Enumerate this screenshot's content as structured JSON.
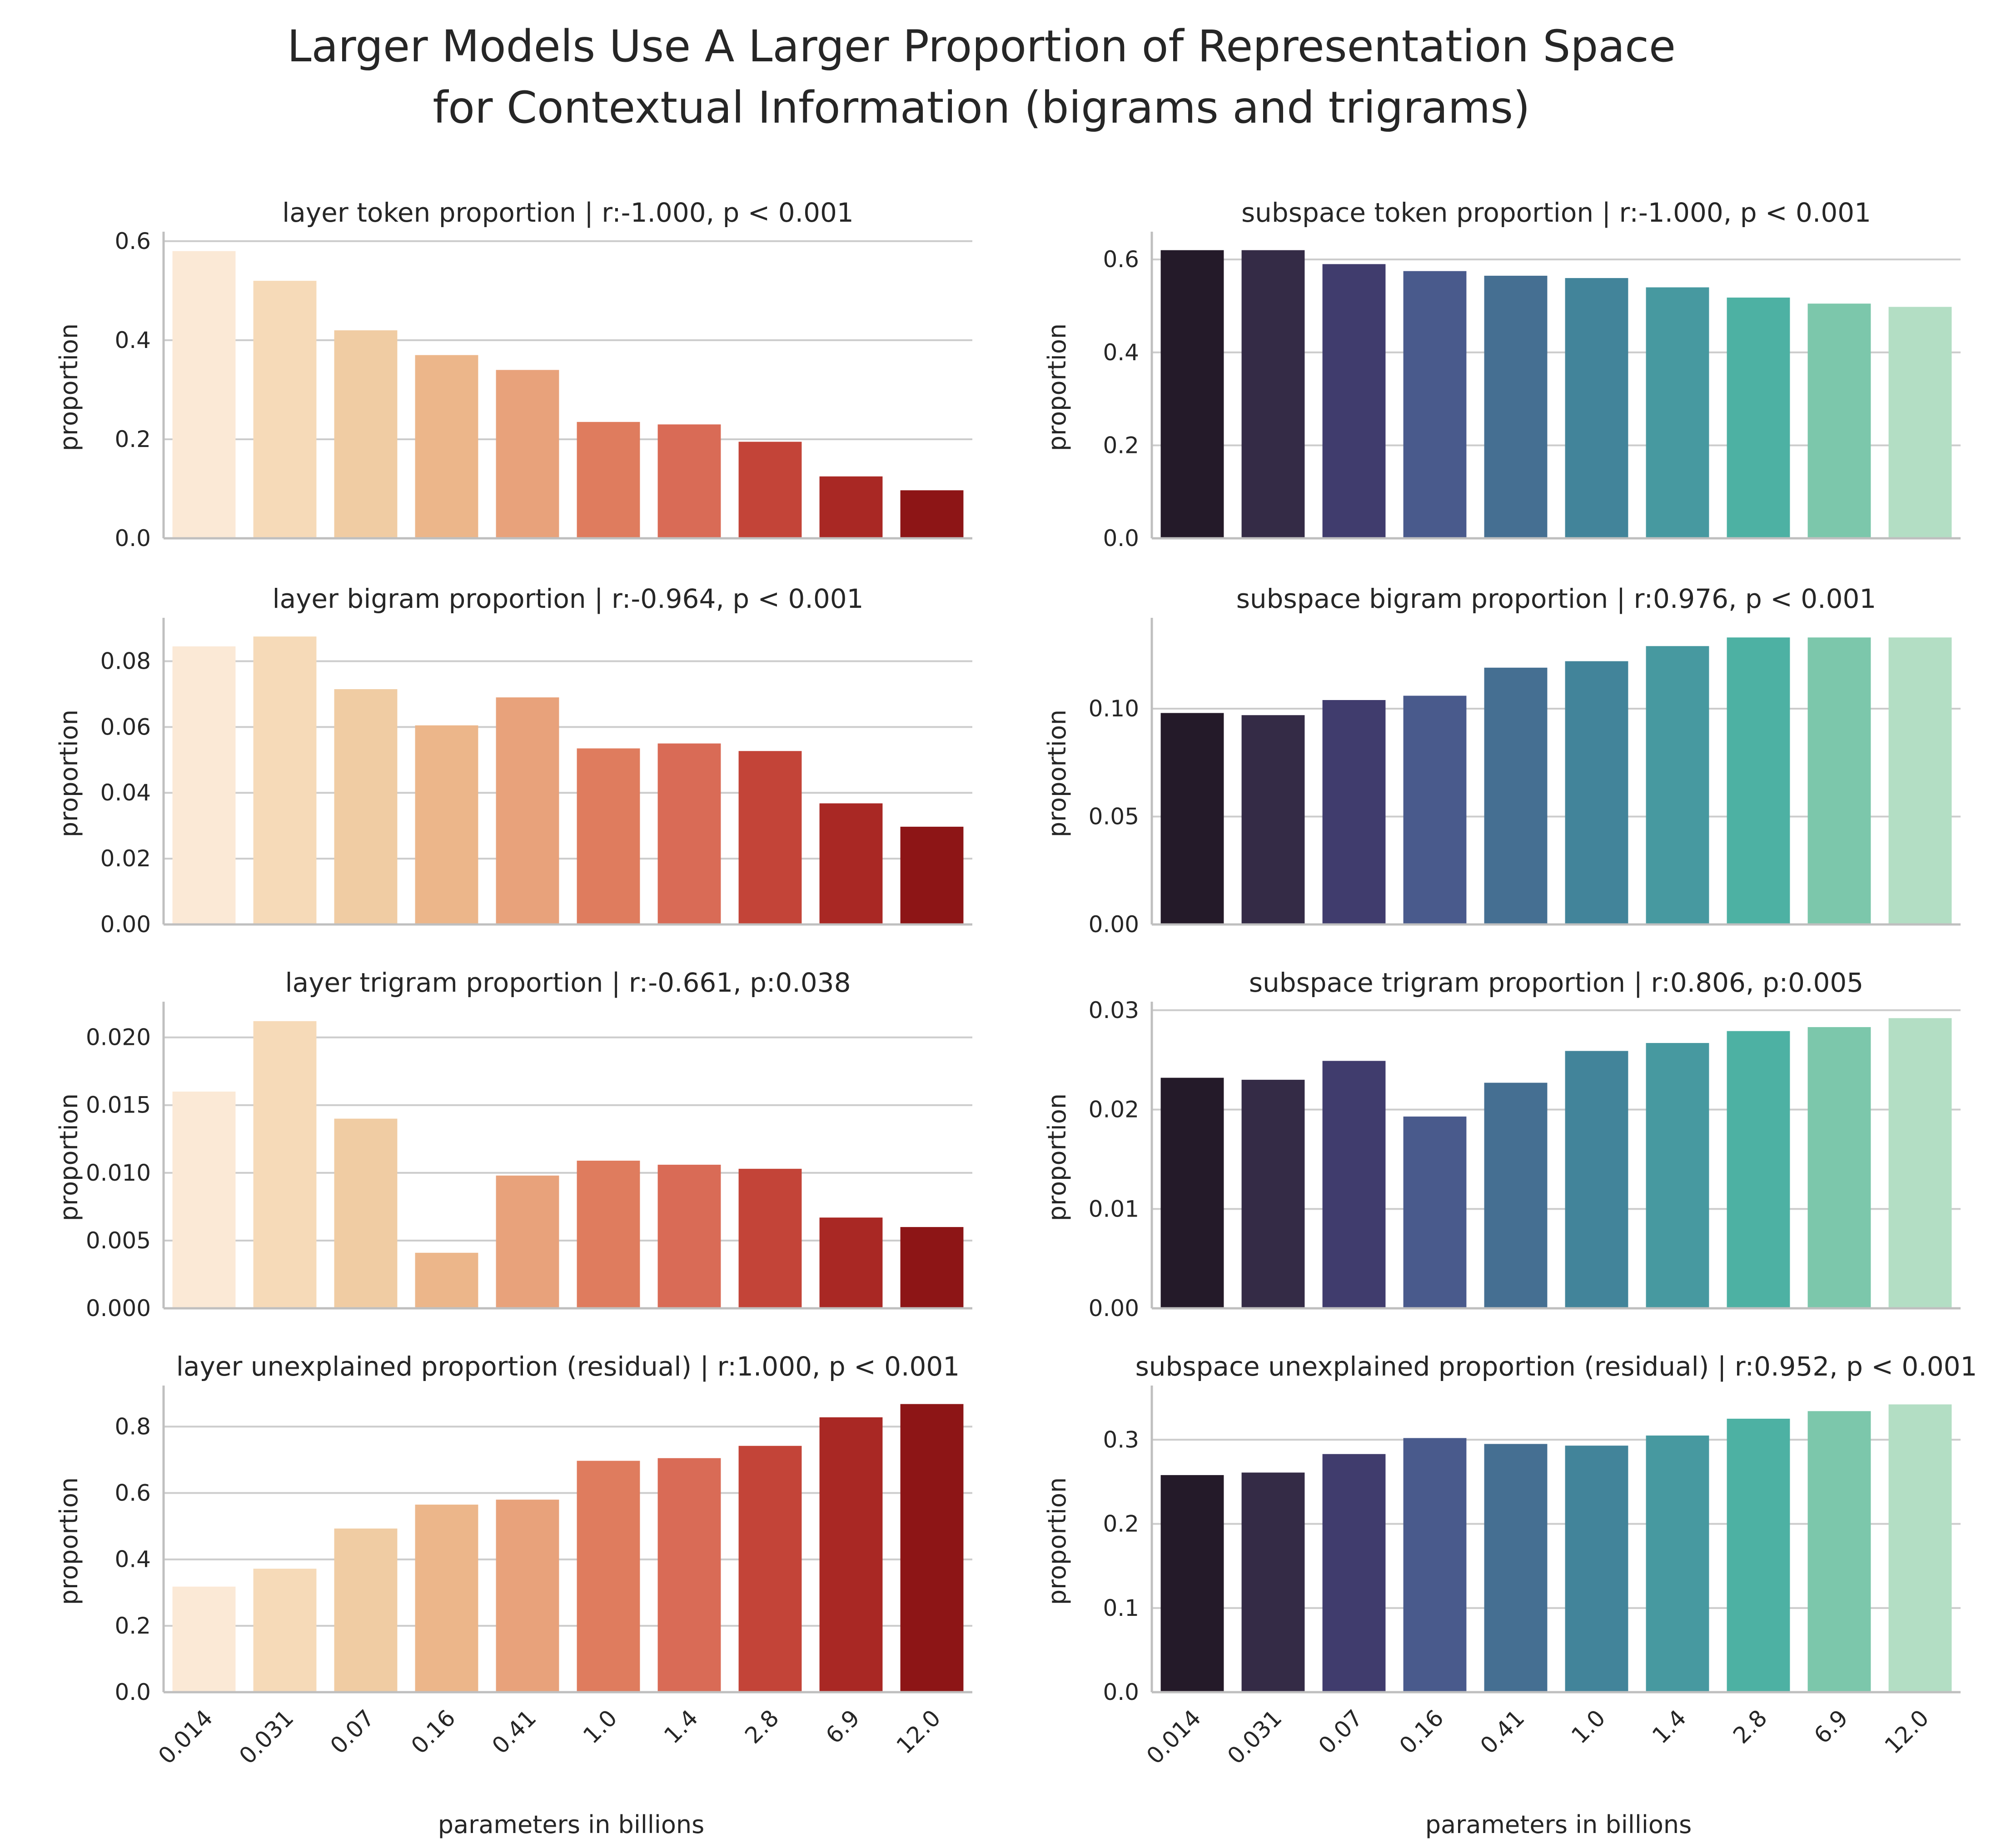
{
  "figure": {
    "title_line1": "Larger Models Use A Larger Proportion of Representation Space",
    "title_line2": "for Contextual Information (bigrams and trigrams)"
  },
  "categories": [
    "0.014",
    "0.031",
    "0.07",
    "0.16",
    "0.41",
    "1.0",
    "1.4",
    "2.8",
    "6.9",
    "12.0"
  ],
  "xlabel": "parameters in billions",
  "ylabel": "proportion",
  "palettes": {
    "layer": [
      "#fbe9d6",
      "#f6dab8",
      "#f0cca3",
      "#ecb68a",
      "#e8a27b",
      "#df7c5e",
      "#d96b56",
      "#c34438",
      "#a92824",
      "#8d1516"
    ],
    "subspace": [
      "#241a29",
      "#342b46",
      "#403c6d",
      "#495a8c",
      "#456f92",
      "#42849a",
      "#4799a0",
      "#4db1a3",
      "#7cc7ab",
      "#b3dec4"
    ]
  },
  "chart_data": [
    {
      "type": "bar",
      "id": "layer-token",
      "palette": "layer",
      "title": "layer token proportion | r:-1.000, p < 0.001",
      "values": [
        0.58,
        0.52,
        0.42,
        0.37,
        0.34,
        0.235,
        0.23,
        0.195,
        0.125,
        0.097
      ],
      "ylim": [
        0,
        0.61
      ],
      "yticks": [
        0,
        0.2,
        0.4,
        0.6
      ],
      "ytick_labels": [
        "0.0",
        "0.2",
        "0.4",
        "0.6"
      ]
    },
    {
      "type": "bar",
      "id": "subspace-token",
      "palette": "subspace",
      "title": "subspace token proportion | r:-1.000, p < 0.001",
      "values": [
        0.62,
        0.62,
        0.59,
        0.575,
        0.565,
        0.56,
        0.54,
        0.518,
        0.505,
        0.498
      ],
      "ylim": [
        0,
        0.65
      ],
      "yticks": [
        0,
        0.2,
        0.4,
        0.6
      ],
      "ytick_labels": [
        "0.0",
        "0.2",
        "0.4",
        "0.6"
      ]
    },
    {
      "type": "bar",
      "id": "layer-bigram",
      "palette": "layer",
      "title": "layer bigram proportion | r:-0.964, p < 0.001",
      "values": [
        0.0845,
        0.0875,
        0.0715,
        0.0605,
        0.069,
        0.0535,
        0.055,
        0.0527,
        0.0368,
        0.0297
      ],
      "ylim": [
        0,
        0.0918
      ],
      "yticks": [
        0,
        0.02,
        0.04,
        0.06,
        0.08
      ],
      "ytick_labels": [
        "0.00",
        "0.02",
        "0.04",
        "0.06",
        "0.08"
      ]
    },
    {
      "type": "bar",
      "id": "subspace-bigram",
      "palette": "subspace",
      "title": "subspace bigram proportion | r:0.976, p < 0.001",
      "values": [
        0.098,
        0.097,
        0.104,
        0.106,
        0.119,
        0.122,
        0.129,
        0.133,
        0.133,
        0.133
      ],
      "ylim": [
        0,
        0.14
      ],
      "yticks": [
        0,
        0.05,
        0.1
      ],
      "ytick_labels": [
        "0.00",
        "0.05",
        "0.10"
      ]
    },
    {
      "type": "bar",
      "id": "layer-trigram",
      "palette": "layer",
      "title": "layer trigram proportion | r:-0.661, p:0.038",
      "values": [
        0.016,
        0.0212,
        0.014,
        0.0041,
        0.0098,
        0.0109,
        0.0106,
        0.0103,
        0.0067,
        0.006
      ],
      "ylim": [
        0,
        0.0223
      ],
      "yticks": [
        0,
        0.005,
        0.01,
        0.015,
        0.02
      ],
      "ytick_labels": [
        "0.000",
        "0.005",
        "0.010",
        "0.015",
        "0.020"
      ]
    },
    {
      "type": "bar",
      "id": "subspace-trigram",
      "palette": "subspace",
      "title": "subspace trigram proportion | r:0.806, p:0.005",
      "values": [
        0.0232,
        0.023,
        0.0249,
        0.0193,
        0.0227,
        0.0259,
        0.0267,
        0.0279,
        0.0283,
        0.0292
      ],
      "ylim": [
        0,
        0.0304
      ],
      "yticks": [
        0,
        0.01,
        0.02,
        0.03
      ],
      "ytick_labels": [
        "0.00",
        "0.01",
        "0.02",
        "0.03"
      ]
    },
    {
      "type": "bar",
      "id": "layer-residual",
      "palette": "layer",
      "title": "layer unexplained proportion (residual) | r:1.000, p < 0.001",
      "values": [
        0.318,
        0.372,
        0.493,
        0.565,
        0.58,
        0.697,
        0.705,
        0.742,
        0.828,
        0.868
      ],
      "ylim": [
        0,
        0.91
      ],
      "yticks": [
        0,
        0.2,
        0.4,
        0.6,
        0.8
      ],
      "ytick_labels": [
        "0.0",
        "0.2",
        "0.4",
        "0.6",
        "0.8"
      ]
    },
    {
      "type": "bar",
      "id": "subspace-residual",
      "palette": "subspace",
      "title": "subspace unexplained proportion (residual) | r:0.952, p < 0.001",
      "values": [
        0.258,
        0.261,
        0.283,
        0.302,
        0.295,
        0.293,
        0.305,
        0.325,
        0.334,
        0.342
      ],
      "ylim": [
        0,
        0.359
      ],
      "yticks": [
        0,
        0.1,
        0.2,
        0.3
      ],
      "ytick_labels": [
        "0.0",
        "0.1",
        "0.2",
        "0.3"
      ]
    }
  ]
}
